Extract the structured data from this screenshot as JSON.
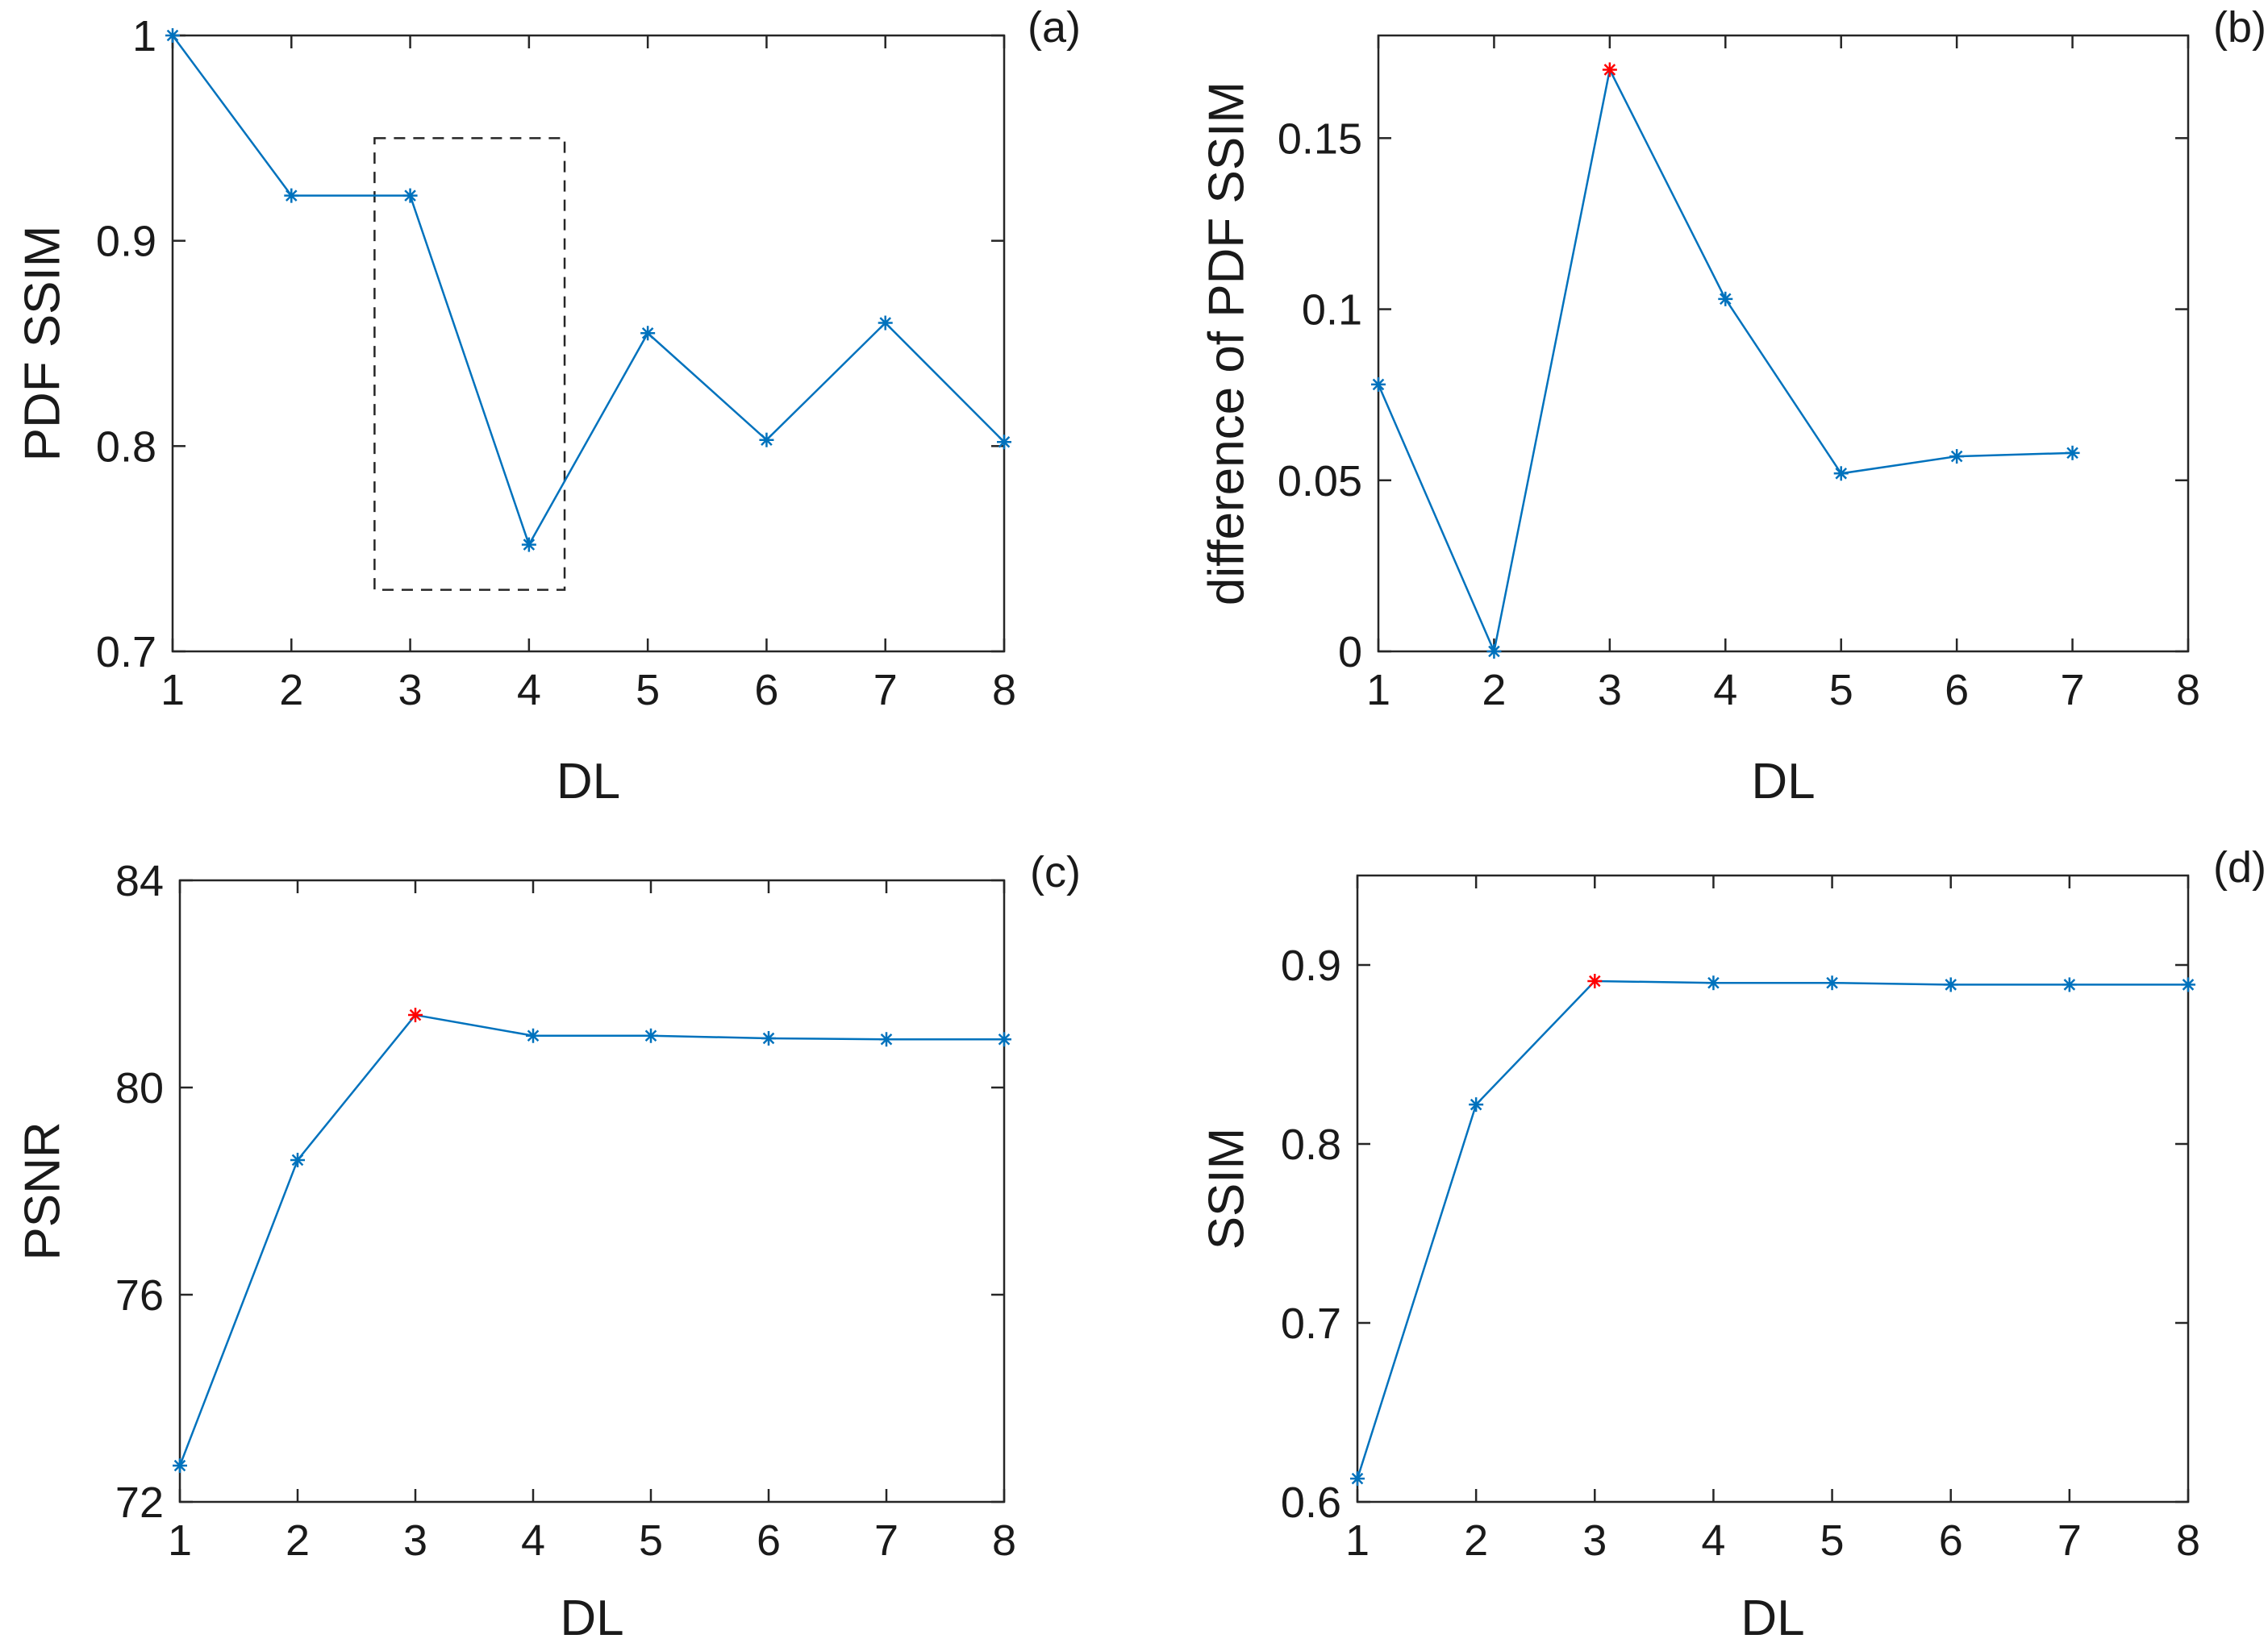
{
  "chart_data": [
    {
      "panel": "(a)",
      "type": "line",
      "xlabel": "DL",
      "ylabel": "PDF SSIM",
      "xlim": [
        1,
        8
      ],
      "ylim": [
        0.7,
        1.0
      ],
      "xticks": [
        "1",
        "2",
        "3",
        "4",
        "5",
        "6",
        "7",
        "8"
      ],
      "yticks": [
        "0.7",
        "0.8",
        "0.9",
        "1"
      ],
      "x": [
        1,
        2,
        3,
        4,
        5,
        6,
        7,
        8
      ],
      "values": [
        1.0,
        0.922,
        0.922,
        0.752,
        0.855,
        0.803,
        0.86,
        0.802
      ],
      "highlight_index": null,
      "highlight_box": {
        "x": [
          2.7,
          4.3
        ],
        "y": [
          0.73,
          0.95
        ]
      },
      "colors": {
        "line": "#0072BD",
        "highlight": "#FF0000"
      }
    },
    {
      "panel": "(b)",
      "type": "line",
      "xlabel": "DL",
      "ylabel": "difference of PDF SSIM",
      "xlim": [
        1,
        8
      ],
      "ylim": [
        0,
        0.18
      ],
      "xticks": [
        "1",
        "2",
        "3",
        "4",
        "5",
        "6",
        "7",
        "8"
      ],
      "yticks": [
        "0",
        "0.05",
        "0.1",
        "0.15"
      ],
      "x": [
        1,
        2,
        3,
        4,
        5,
        6,
        7
      ],
      "values": [
        0.078,
        0.0,
        0.17,
        0.103,
        0.052,
        0.057,
        0.058
      ],
      "highlight_index": 2,
      "colors": {
        "line": "#0072BD",
        "highlight": "#FF0000"
      }
    },
    {
      "panel": "(c)",
      "type": "line",
      "xlabel": "DL",
      "ylabel": "PSNR",
      "xlim": [
        1,
        8
      ],
      "ylim": [
        72,
        84
      ],
      "xticks": [
        "1",
        "2",
        "3",
        "4",
        "5",
        "6",
        "7",
        "8"
      ],
      "yticks": [
        "72",
        "76",
        "80",
        "84"
      ],
      "x": [
        1,
        2,
        3,
        4,
        5,
        6,
        7,
        8
      ],
      "values": [
        72.7,
        78.6,
        81.4,
        81.0,
        81.0,
        80.95,
        80.93,
        80.93
      ],
      "highlight_index": 2,
      "colors": {
        "line": "#0072BD",
        "highlight": "#FF0000"
      }
    },
    {
      "panel": "(d)",
      "type": "line",
      "xlabel": "DL",
      "ylabel": "SSIM",
      "xlim": [
        1,
        8
      ],
      "ylim": [
        0.6,
        0.95
      ],
      "xticks": [
        "1",
        "2",
        "3",
        "4",
        "5",
        "6",
        "7",
        "8"
      ],
      "yticks": [
        "0.6",
        "0.7",
        "0.8",
        "0.9"
      ],
      "x": [
        1,
        2,
        3,
        4,
        5,
        6,
        7,
        8
      ],
      "values": [
        0.613,
        0.822,
        0.891,
        0.89,
        0.89,
        0.889,
        0.889,
        0.889
      ],
      "highlight_index": 2,
      "colors": {
        "line": "#0072BD",
        "highlight": "#FF0000"
      }
    }
  ]
}
